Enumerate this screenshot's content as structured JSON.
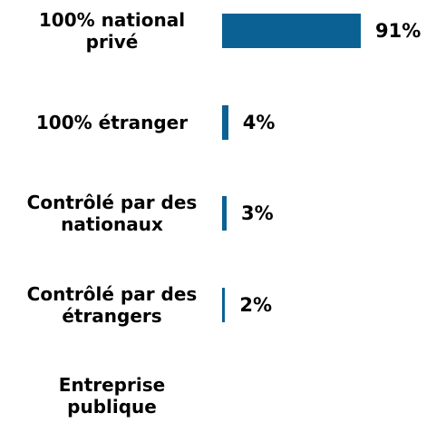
{
  "chart_data": {
    "type": "bar",
    "orientation": "horizontal",
    "categories": [
      "100% national privé",
      "100% étranger",
      "Contrôlé par des nationaux",
      "Contrôlé par des étrangers",
      "Entreprise publique"
    ],
    "values": [
      91,
      4,
      3,
      2,
      null
    ],
    "value_labels": [
      "91%",
      "4%",
      "3%",
      "2%",
      null
    ],
    "color": "#0b6194"
  }
}
